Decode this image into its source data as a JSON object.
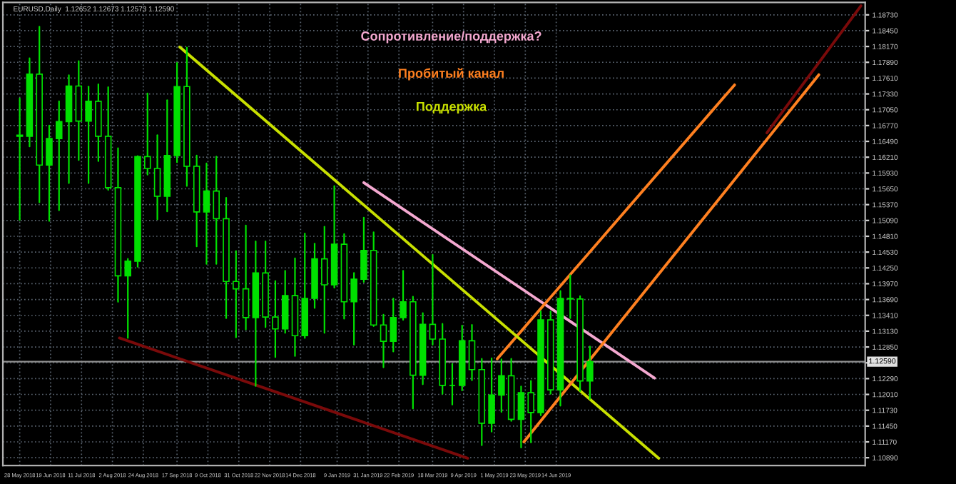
{
  "chart_data": {
    "type": "candlestick",
    "title": "EURUSD,Daily  1.12652 1.12673 1.12573 1.12590",
    "annotations": [
      "Сопротивление/поддержка?",
      "Пробитый канал",
      "Поддержка"
    ],
    "color": "#00e000",
    "x": [
      "2018-05-28",
      "2018-06-04",
      "2018-06-11",
      "2018-06-18",
      "2018-06-25",
      "2018-07-02",
      "2018-07-09",
      "2018-07-16",
      "2018-07-23",
      "2018-07-30",
      "2018-08-06",
      "2018-08-13",
      "2018-08-20",
      "2018-08-27",
      "2018-09-03",
      "2018-09-10",
      "2018-09-17",
      "2018-09-24",
      "2018-10-01",
      "2018-10-08",
      "2018-10-15",
      "2018-10-22",
      "2018-10-29",
      "2018-11-05",
      "2018-11-12",
      "2018-11-19",
      "2018-11-26",
      "2018-12-03",
      "2018-12-10",
      "2018-12-17",
      "2018-12-24",
      "2018-12-31",
      "2019-01-07",
      "2019-01-14",
      "2019-01-21",
      "2019-01-28",
      "2019-02-04",
      "2019-02-11",
      "2019-02-18",
      "2019-02-25",
      "2019-03-04",
      "2019-03-11",
      "2019-03-18",
      "2019-03-25",
      "2019-04-01",
      "2019-04-08",
      "2019-04-15",
      "2019-04-22",
      "2019-04-29",
      "2019-05-06",
      "2019-05-13",
      "2019-05-20",
      "2019-05-27",
      "2019-06-03",
      "2019-06-10",
      "2019-06-17",
      "2019-06-24",
      "2019-07-01",
      "2019-07-08"
    ],
    "ohlc": [
      [
        1.166,
        1.1725,
        1.151,
        1.1658
      ],
      [
        1.1658,
        1.1796,
        1.164,
        1.1768
      ],
      [
        1.1768,
        1.1852,
        1.1541,
        1.1607
      ],
      [
        1.1607,
        1.1677,
        1.1508,
        1.1654
      ],
      [
        1.1654,
        1.172,
        1.1527,
        1.1684
      ],
      [
        1.1684,
        1.1766,
        1.1575,
        1.1747
      ],
      [
        1.1747,
        1.1791,
        1.1616,
        1.1685
      ],
      [
        1.1685,
        1.1746,
        1.1575,
        1.172
      ],
      [
        1.172,
        1.175,
        1.1614,
        1.1658
      ],
      [
        1.1658,
        1.1745,
        1.1563,
        1.1567
      ],
      [
        1.1567,
        1.1637,
        1.1365,
        1.1411
      ],
      [
        1.1411,
        1.1441,
        1.1301,
        1.1437
      ],
      [
        1.1437,
        1.1623,
        1.1427,
        1.1622
      ],
      [
        1.1622,
        1.1734,
        1.159,
        1.1601
      ],
      [
        1.1601,
        1.166,
        1.1511,
        1.1552
      ],
      [
        1.1552,
        1.1722,
        1.1525,
        1.1624
      ],
      [
        1.1624,
        1.1788,
        1.1612,
        1.1746
      ],
      [
        1.1746,
        1.1815,
        1.157,
        1.1605
      ],
      [
        1.1605,
        1.1624,
        1.1463,
        1.1524
      ],
      [
        1.1524,
        1.161,
        1.1432,
        1.1561
      ],
      [
        1.1561,
        1.1622,
        1.1432,
        1.1512
      ],
      [
        1.1512,
        1.1549,
        1.1336,
        1.1401
      ],
      [
        1.1401,
        1.1455,
        1.1302,
        1.1388
      ],
      [
        1.1388,
        1.15,
        1.1316,
        1.1337
      ],
      [
        1.1337,
        1.1472,
        1.1216,
        1.1416
      ],
      [
        1.1416,
        1.1472,
        1.132,
        1.1338
      ],
      [
        1.1338,
        1.1402,
        1.1267,
        1.1317
      ],
      [
        1.1317,
        1.142,
        1.131,
        1.1376
      ],
      [
        1.1376,
        1.1442,
        1.1269,
        1.1305
      ],
      [
        1.1305,
        1.1486,
        1.1301,
        1.1371
      ],
      [
        1.1371,
        1.1468,
        1.1354,
        1.1441
      ],
      [
        1.1441,
        1.1498,
        1.131,
        1.1395
      ],
      [
        1.1395,
        1.157,
        1.139,
        1.1467
      ],
      [
        1.1467,
        1.1485,
        1.1335,
        1.1365
      ],
      [
        1.1365,
        1.1416,
        1.1289,
        1.1405
      ],
      [
        1.1405,
        1.1514,
        1.14,
        1.1456
      ],
      [
        1.1456,
        1.1488,
        1.1322,
        1.1324
      ],
      [
        1.1324,
        1.1342,
        1.1249,
        1.1295
      ],
      [
        1.1295,
        1.1371,
        1.1277,
        1.1337
      ],
      [
        1.1337,
        1.142,
        1.1333,
        1.1365
      ],
      [
        1.1365,
        1.1374,
        1.1176,
        1.1235
      ],
      [
        1.1235,
        1.1345,
        1.1219,
        1.1325
      ],
      [
        1.1325,
        1.1448,
        1.1289,
        1.1299
      ],
      [
        1.1299,
        1.1326,
        1.1202,
        1.1217
      ],
      [
        1.1217,
        1.1255,
        1.1183,
        1.1217
      ],
      [
        1.1217,
        1.1323,
        1.1208,
        1.1296
      ],
      [
        1.1296,
        1.1324,
        1.1226,
        1.1245
      ],
      [
        1.1245,
        1.1264,
        1.1111,
        1.115
      ],
      [
        1.115,
        1.1265,
        1.1135,
        1.12
      ],
      [
        1.12,
        1.1263,
        1.117,
        1.1234
      ],
      [
        1.1234,
        1.1264,
        1.1154,
        1.1157
      ],
      [
        1.1157,
        1.1215,
        1.1107,
        1.1204
      ],
      [
        1.1204,
        1.1225,
        1.1116,
        1.1169
      ],
      [
        1.1169,
        1.1348,
        1.1164,
        1.1333
      ],
      [
        1.1333,
        1.1348,
        1.1202,
        1.1209
      ],
      [
        1.1209,
        1.1384,
        1.1181,
        1.1371
      ],
      [
        1.1371,
        1.1412,
        1.1336,
        1.137
      ],
      [
        1.137,
        1.1375,
        1.1207,
        1.1225
      ],
      [
        1.1225,
        1.1286,
        1.1193,
        1.1259
      ]
    ],
    "series": [
      {
        "type": "line",
        "color": "#f4a8d0",
        "x": [
          "2019-01-28",
          "2019-08-23"
        ],
        "values": [
          1.1576,
          1.123
        ]
      },
      {
        "type": "line",
        "color": "#ff8020",
        "x": [
          "2019-05-03",
          "2019-10-19"
        ],
        "values": [
          1.1264,
          1.1749
        ]
      },
      {
        "type": "line",
        "color": "#c8e000",
        "x": [
          "2018-09-19",
          "2019-08-26"
        ],
        "values": [
          1.1816,
          1.1088
        ]
      },
      {
        "type": "line",
        "color": "#ff8020",
        "x": [
          "2019-05-22",
          "2019-12-18"
        ],
        "values": [
          1.1117,
          1.1767
        ]
      },
      {
        "type": "line",
        "color": "#7a0a0a",
        "x": [
          "2018-08-07",
          "2019-04-12"
        ],
        "values": [
          1.1301,
          1.1088
        ]
      },
      {
        "type": "line",
        "color": "#7a0a0a",
        "x": [
          "2019-11-11",
          "2020-01-17"
        ],
        "values": [
          1.1664,
          1.1889
        ]
      }
    ],
    "ref_lines": [
      {
        "axis": "y",
        "value": 1.1259,
        "label": "1.12590",
        "color": "#909090"
      }
    ],
    "xlim": [
      "2018-05-16",
      "2020-01-20"
    ],
    "xticks": [
      {
        "value": "2018-05-28",
        "label": "28 May 2018"
      },
      {
        "value": "2018-06-19",
        "label": "19 Jun 2018"
      },
      {
        "value": "2018-07-11",
        "label": "11 Jul 2018"
      },
      {
        "value": "2018-08-02",
        "label": "2 Aug 2018"
      },
      {
        "value": "2018-08-24",
        "label": "24 Aug 2018"
      },
      {
        "value": "2018-09-17",
        "label": "17 Sep 2018"
      },
      {
        "value": "2018-10-09",
        "label": "9 Oct 2018"
      },
      {
        "value": "2018-10-31",
        "label": "31 Oct 2018"
      },
      {
        "value": "2018-11-22",
        "label": "22 Nov 2018"
      },
      {
        "value": "2018-12-14",
        "label": "14 Dec 2018"
      },
      {
        "value": "2019-01-09",
        "label": "9 Jan 2019"
      },
      {
        "value": "2019-01-31",
        "label": "31 Jan 2019"
      },
      {
        "value": "2019-02-22",
        "label": "22 Feb 2019"
      },
      {
        "value": "2019-03-18",
        "label": "18 Mar 2019"
      },
      {
        "value": "2019-04-09",
        "label": "9 Apr 2019"
      },
      {
        "value": "2019-05-01",
        "label": "1 May 2019"
      },
      {
        "value": "2019-05-23",
        "label": "23 May 2019"
      },
      {
        "value": "2019-06-14",
        "label": "14 Jun 2019"
      }
    ],
    "ylim": [
      1.1075,
      1.1895
    ],
    "yticks": [
      {
        "value": 1.1089,
        "label": "1.10890"
      },
      {
        "value": 1.1117,
        "label": "1.11170"
      },
      {
        "value": 1.1145,
        "label": "1.11450"
      },
      {
        "value": 1.1173,
        "label": "1.11730"
      },
      {
        "value": 1.1201,
        "label": "1.12010"
      },
      {
        "value": 1.1229,
        "label": "1.12290"
      },
      {
        "value": 1.1257,
        "label": null
      },
      {
        "value": 1.1285,
        "label": "1.12850"
      },
      {
        "value": 1.1313,
        "label": "1.13130"
      },
      {
        "value": 1.1341,
        "label": "1.13410"
      },
      {
        "value": 1.1369,
        "label": "1.13690"
      },
      {
        "value": 1.1397,
        "label": "1.13970"
      },
      {
        "value": 1.1425,
        "label": "1.14250"
      },
      {
        "value": 1.1453,
        "label": "1.14530"
      },
      {
        "value": 1.1481,
        "label": "1.14810"
      },
      {
        "value": 1.1509,
        "label": "1.15090"
      },
      {
        "value": 1.1537,
        "label": "1.15370"
      },
      {
        "value": 1.1565,
        "label": "1.15650"
      },
      {
        "value": 1.1593,
        "label": "1.15930"
      },
      {
        "value": 1.1621,
        "label": "1.16210"
      },
      {
        "value": 1.1649,
        "label": "1.16490"
      },
      {
        "value": 1.1677,
        "label": "1.16770"
      },
      {
        "value": 1.1705,
        "label": "1.17050"
      },
      {
        "value": 1.1733,
        "label": "1.17330"
      },
      {
        "value": 1.1761,
        "label": "1.17610"
      },
      {
        "value": 1.1789,
        "label": "1.17890"
      },
      {
        "value": 1.1817,
        "label": "1.18170"
      },
      {
        "value": 1.1845,
        "label": "1.18450"
      },
      {
        "value": 1.1873,
        "label": "1.18730"
      }
    ],
    "grid": true
  }
}
